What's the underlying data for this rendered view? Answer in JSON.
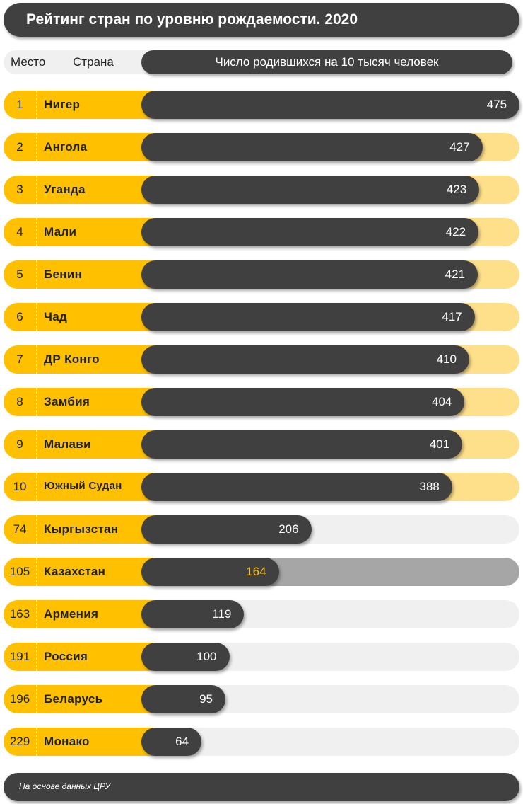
{
  "title": "Рейтинг стран по уровню рождаемости. 2020",
  "header": {
    "rank": "Место",
    "country": "Страна",
    "value": "Число родившихся на 10 тысяч человек"
  },
  "footer": "На основе данных ЦРУ",
  "colors": {
    "dark": "#404040",
    "accent": "#ffc000",
    "top10_track": "#ffe08a",
    "highlight_track": "#a6a6a6",
    "other_track": "#f0f0f0",
    "highlight_value": "#ffc000"
  },
  "chart_data": {
    "type": "bar",
    "orientation": "horizontal",
    "title": "Рейтинг стран по уровню рождаемости. 2020",
    "value_label": "Число родившихся на 10 тысяч человек",
    "highlight": "Казахстан",
    "rows": [
      {
        "rank": "1",
        "country": "Нигер",
        "value": 475
      },
      {
        "rank": "2",
        "country": "Ангола",
        "value": 427
      },
      {
        "rank": "3",
        "country": "Уганда",
        "value": 423
      },
      {
        "rank": "4",
        "country": "Мали",
        "value": 422
      },
      {
        "rank": "5",
        "country": "Бенин",
        "value": 421
      },
      {
        "rank": "6",
        "country": "Чад",
        "value": 417
      },
      {
        "rank": "7",
        "country": "ДР Конго",
        "value": 410
      },
      {
        "rank": "8",
        "country": "Замбия",
        "value": 404
      },
      {
        "rank": "9",
        "country": "Малави",
        "value": 401
      },
      {
        "rank": "10",
        "country": "Южный Судан",
        "value": 388
      },
      {
        "rank": "74",
        "country": "Кыргызстан",
        "value": 206
      },
      {
        "rank": "105",
        "country": "Казахстан",
        "value": 164
      },
      {
        "rank": "163",
        "country": "Армения",
        "value": 119
      },
      {
        "rank": "191",
        "country": "Россия",
        "value": 100
      },
      {
        "rank": "196",
        "country": "Беларусь",
        "value": 95
      },
      {
        "rank": "229",
        "country": "Монако",
        "value": 64
      }
    ]
  }
}
